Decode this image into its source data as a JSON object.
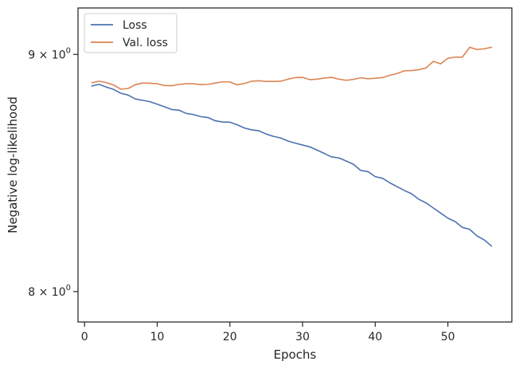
{
  "chart_data": {
    "type": "line",
    "xlabel": "Epochs",
    "ylabel": "Negative log-likelihood",
    "xlim": [
      -0.9,
      58.8
    ],
    "ylim": [
      7.88,
      9.21
    ],
    "yscale": "log",
    "grid": false,
    "legend_position": "top-left",
    "xticks": [
      0,
      10,
      20,
      30,
      40,
      50
    ],
    "yticks": [
      {
        "value": 9,
        "label": "9 × 10",
        "exp": "0"
      },
      {
        "value": 8,
        "label": "8 × 10",
        "exp": "0"
      }
    ],
    "x": [
      1,
      2,
      3,
      4,
      5,
      6,
      7,
      8,
      9,
      10,
      11,
      12,
      13,
      14,
      15,
      16,
      17,
      18,
      19,
      20,
      21,
      22,
      23,
      24,
      25,
      26,
      27,
      28,
      29,
      30,
      31,
      32,
      33,
      34,
      35,
      36,
      37,
      38,
      39,
      40,
      41,
      42,
      43,
      44,
      45,
      46,
      47,
      48,
      49,
      50,
      51,
      52,
      53,
      54,
      55,
      56
    ],
    "series": [
      {
        "name": "Loss",
        "color": "#4c72b0",
        "values": [
          8.86,
          8.867,
          8.855,
          8.845,
          8.828,
          8.82,
          8.803,
          8.797,
          8.791,
          8.78,
          8.769,
          8.757,
          8.754,
          8.74,
          8.735,
          8.726,
          8.722,
          8.708,
          8.703,
          8.702,
          8.691,
          8.677,
          8.669,
          8.665,
          8.651,
          8.641,
          8.634,
          8.621,
          8.612,
          8.604,
          8.596,
          8.582,
          8.568,
          8.553,
          8.549,
          8.536,
          8.522,
          8.496,
          8.491,
          8.47,
          8.463,
          8.444,
          8.428,
          8.412,
          8.398,
          8.375,
          8.36,
          8.339,
          8.318,
          8.297,
          8.283,
          8.259,
          8.251,
          8.224,
          8.208,
          8.183
        ]
      },
      {
        "name": "Val. loss",
        "color": "#dd8452",
        "values": [
          8.874,
          8.881,
          8.875,
          8.864,
          8.846,
          8.849,
          8.866,
          8.873,
          8.872,
          8.87,
          8.862,
          8.861,
          8.867,
          8.87,
          8.87,
          8.866,
          8.867,
          8.873,
          8.878,
          8.878,
          8.865,
          8.871,
          8.881,
          8.883,
          8.88,
          8.88,
          8.881,
          8.89,
          8.897,
          8.898,
          8.888,
          8.89,
          8.895,
          8.898,
          8.89,
          8.885,
          8.889,
          8.896,
          8.892,
          8.894,
          8.897,
          8.907,
          8.915,
          8.927,
          8.928,
          8.932,
          8.94,
          8.969,
          8.958,
          8.983,
          8.988,
          8.988,
          9.032,
          9.022,
          9.025,
          9.032
        ]
      }
    ]
  }
}
